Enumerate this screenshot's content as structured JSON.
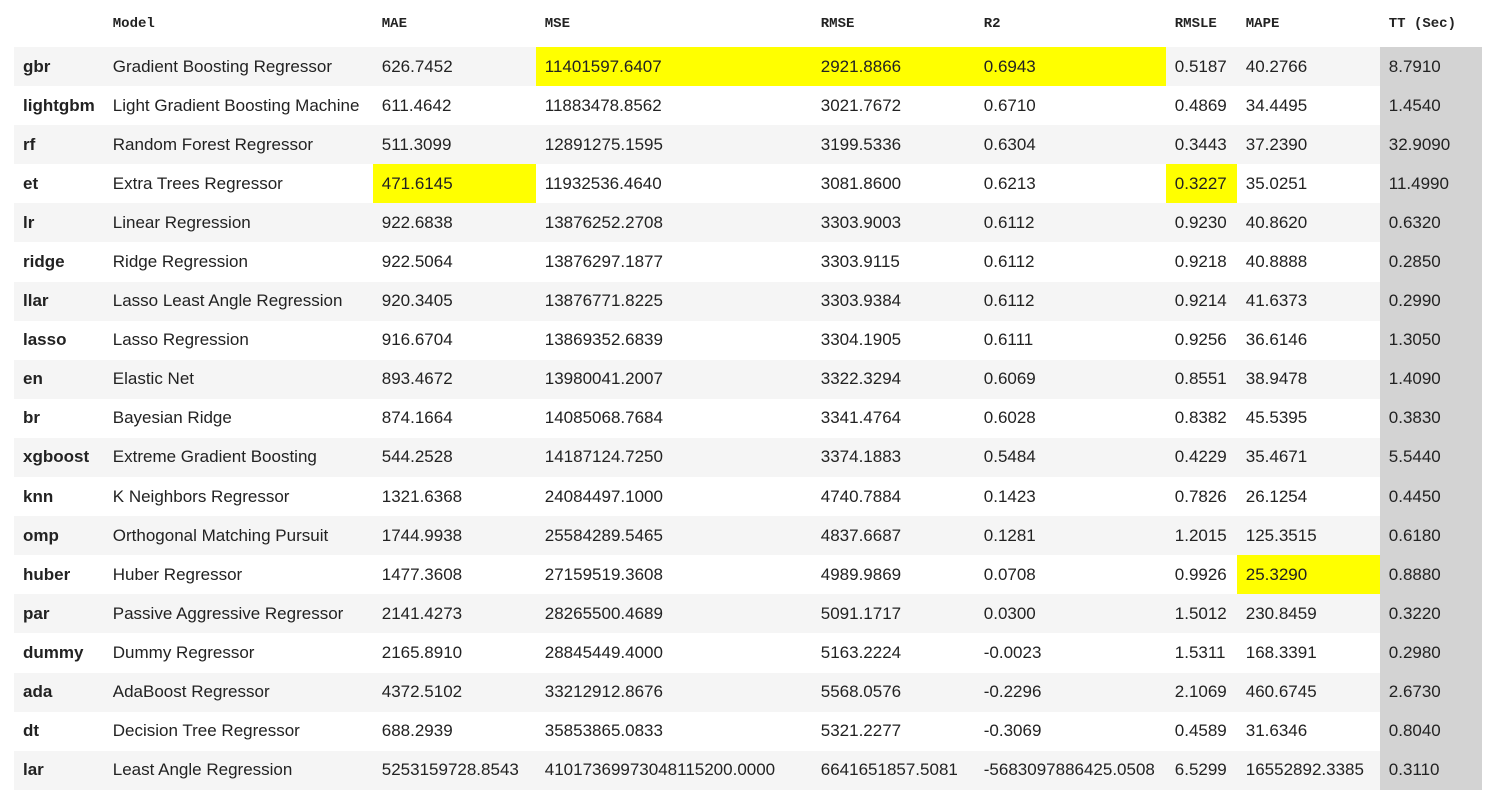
{
  "table": {
    "columns": [
      "Model",
      "MAE",
      "MSE",
      "RMSE",
      "R2",
      "RMSLE",
      "MAPE",
      "TT (Sec)"
    ],
    "rows": [
      {
        "id": "gbr",
        "model": "Gradient Boosting Regressor",
        "mae": "626.7452",
        "mse": "11401597.6407",
        "rmse": "2921.8866",
        "r2": "0.6943",
        "rmsle": "0.5187",
        "mape": "40.2766",
        "tt": "8.7910"
      },
      {
        "id": "lightgbm",
        "model": "Light Gradient Boosting Machine",
        "mae": "611.4642",
        "mse": "11883478.8562",
        "rmse": "3021.7672",
        "r2": "0.6710",
        "rmsle": "0.4869",
        "mape": "34.4495",
        "tt": "1.4540"
      },
      {
        "id": "rf",
        "model": "Random Forest Regressor",
        "mae": "511.3099",
        "mse": "12891275.1595",
        "rmse": "3199.5336",
        "r2": "0.6304",
        "rmsle": "0.3443",
        "mape": "37.2390",
        "tt": "32.9090"
      },
      {
        "id": "et",
        "model": "Extra Trees Regressor",
        "mae": "471.6145",
        "mse": "11932536.4640",
        "rmse": "3081.8600",
        "r2": "0.6213",
        "rmsle": "0.3227",
        "mape": "35.0251",
        "tt": "11.4990"
      },
      {
        "id": "lr",
        "model": "Linear Regression",
        "mae": "922.6838",
        "mse": "13876252.2708",
        "rmse": "3303.9003",
        "r2": "0.6112",
        "rmsle": "0.9230",
        "mape": "40.8620",
        "tt": "0.6320"
      },
      {
        "id": "ridge",
        "model": "Ridge Regression",
        "mae": "922.5064",
        "mse": "13876297.1877",
        "rmse": "3303.9115",
        "r2": "0.6112",
        "rmsle": "0.9218",
        "mape": "40.8888",
        "tt": "0.2850"
      },
      {
        "id": "llar",
        "model": "Lasso Least Angle Regression",
        "mae": "920.3405",
        "mse": "13876771.8225",
        "rmse": "3303.9384",
        "r2": "0.6112",
        "rmsle": "0.9214",
        "mape": "41.6373",
        "tt": "0.2990"
      },
      {
        "id": "lasso",
        "model": "Lasso Regression",
        "mae": "916.6704",
        "mse": "13869352.6839",
        "rmse": "3304.1905",
        "r2": "0.6111",
        "rmsle": "0.9256",
        "mape": "36.6146",
        "tt": "1.3050"
      },
      {
        "id": "en",
        "model": "Elastic Net",
        "mae": "893.4672",
        "mse": "13980041.2007",
        "rmse": "3322.3294",
        "r2": "0.6069",
        "rmsle": "0.8551",
        "mape": "38.9478",
        "tt": "1.4090"
      },
      {
        "id": "br",
        "model": "Bayesian Ridge",
        "mae": "874.1664",
        "mse": "14085068.7684",
        "rmse": "3341.4764",
        "r2": "0.6028",
        "rmsle": "0.8382",
        "mape": "45.5395",
        "tt": "0.3830"
      },
      {
        "id": "xgboost",
        "model": "Extreme Gradient Boosting",
        "mae": "544.2528",
        "mse": "14187124.7250",
        "rmse": "3374.1883",
        "r2": "0.5484",
        "rmsle": "0.4229",
        "mape": "35.4671",
        "tt": "5.5440"
      },
      {
        "id": "knn",
        "model": "K Neighbors Regressor",
        "mae": "1321.6368",
        "mse": "24084497.1000",
        "rmse": "4740.7884",
        "r2": "0.1423",
        "rmsle": "0.7826",
        "mape": "26.1254",
        "tt": "0.4450"
      },
      {
        "id": "omp",
        "model": "Orthogonal Matching Pursuit",
        "mae": "1744.9938",
        "mse": "25584289.5465",
        "rmse": "4837.6687",
        "r2": "0.1281",
        "rmsle": "1.2015",
        "mape": "125.3515",
        "tt": "0.6180"
      },
      {
        "id": "huber",
        "model": "Huber Regressor",
        "mae": "1477.3608",
        "mse": "27159519.3608",
        "rmse": "4989.9869",
        "r2": "0.0708",
        "rmsle": "0.9926",
        "mape": "25.3290",
        "tt": "0.8880"
      },
      {
        "id": "par",
        "model": "Passive Aggressive Regressor",
        "mae": "2141.4273",
        "mse": "28265500.4689",
        "rmse": "5091.1717",
        "r2": "0.0300",
        "rmsle": "1.5012",
        "mape": "230.8459",
        "tt": "0.3220"
      },
      {
        "id": "dummy",
        "model": "Dummy Regressor",
        "mae": "2165.8910",
        "mse": "28845449.4000",
        "rmse": "5163.2224",
        "r2": "-0.0023",
        "rmsle": "1.5311",
        "mape": "168.3391",
        "tt": "0.2980"
      },
      {
        "id": "ada",
        "model": "AdaBoost Regressor",
        "mae": "4372.5102",
        "mse": "33212912.8676",
        "rmse": "5568.0576",
        "r2": "-0.2296",
        "rmsle": "2.1069",
        "mape": "460.6745",
        "tt": "2.6730"
      },
      {
        "id": "dt",
        "model": "Decision Tree Regressor",
        "mae": "688.2939",
        "mse": "35853865.0833",
        "rmse": "5321.2277",
        "r2": "-0.3069",
        "rmsle": "0.4589",
        "mape": "31.6346",
        "tt": "0.8040"
      },
      {
        "id": "lar",
        "model": "Least Angle Regression",
        "mae": "5253159728.8543",
        "mse": "41017369973048115200.0000",
        "rmse": "6641651857.5081",
        "r2": "-5683097886425.0508",
        "rmsle": "6.5299",
        "mape": "16552892.3385",
        "tt": "0.3110"
      }
    ]
  },
  "styles": {
    "highlight_color": "#ffff00",
    "tt_column_color": "#d3d3d3",
    "stripe_color": "#f5f5f5"
  }
}
